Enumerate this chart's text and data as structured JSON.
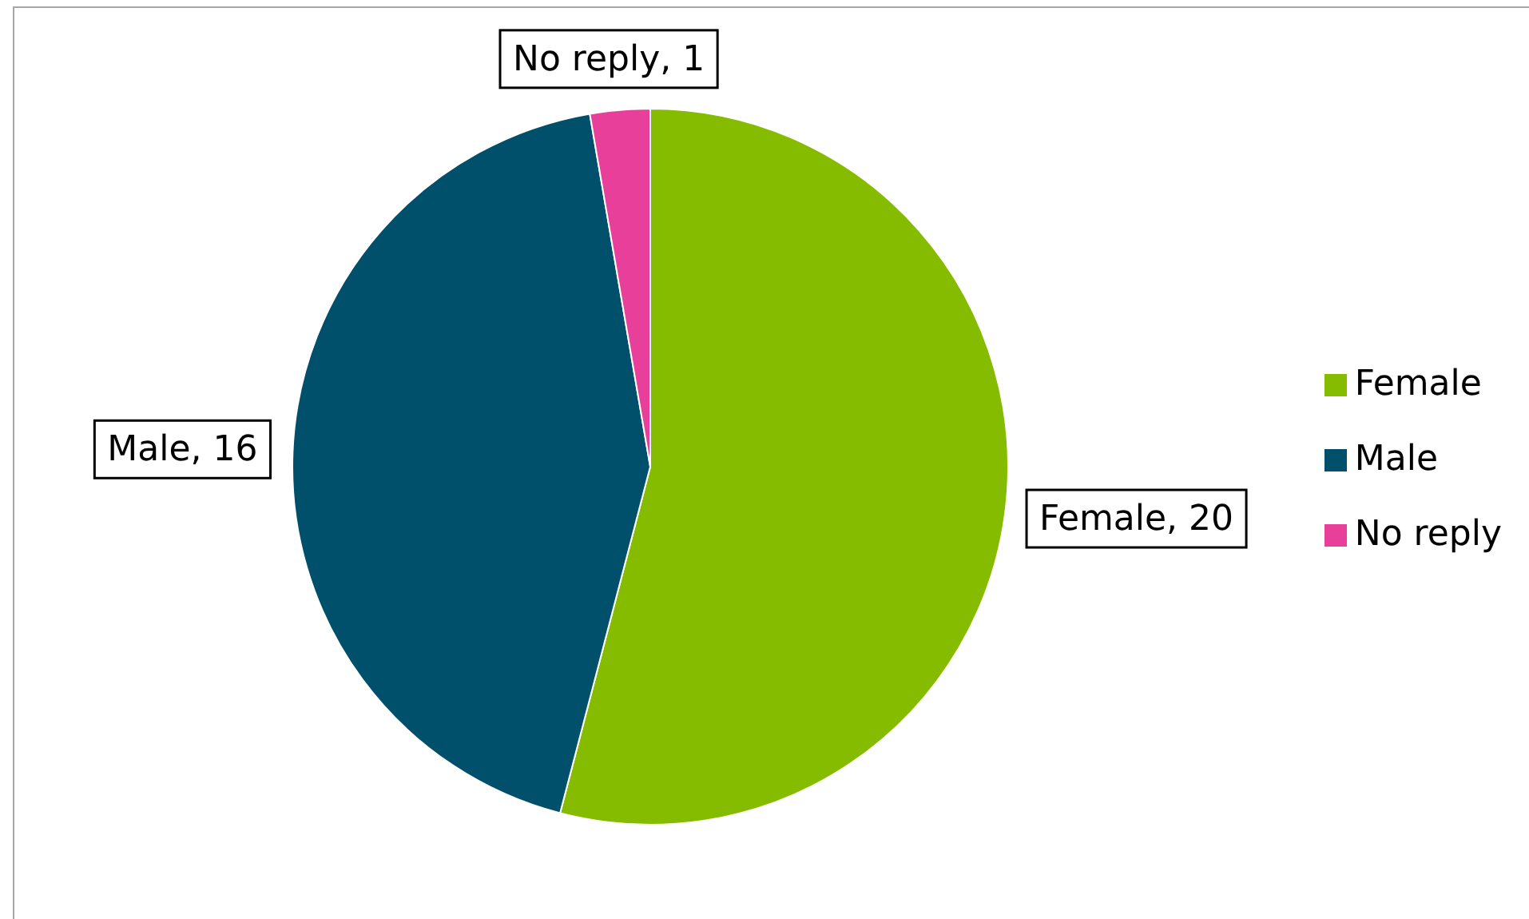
{
  "chart_data": {
    "type": "pie",
    "categories": [
      "Female",
      "Male",
      "No reply"
    ],
    "values": [
      20,
      16,
      1
    ],
    "colors": [
      "#86bc00",
      "#004f6b",
      "#e8409a"
    ],
    "value_labels": [
      "Female, 20",
      "Male, 16",
      "No reply, 1"
    ],
    "legend": "right"
  }
}
